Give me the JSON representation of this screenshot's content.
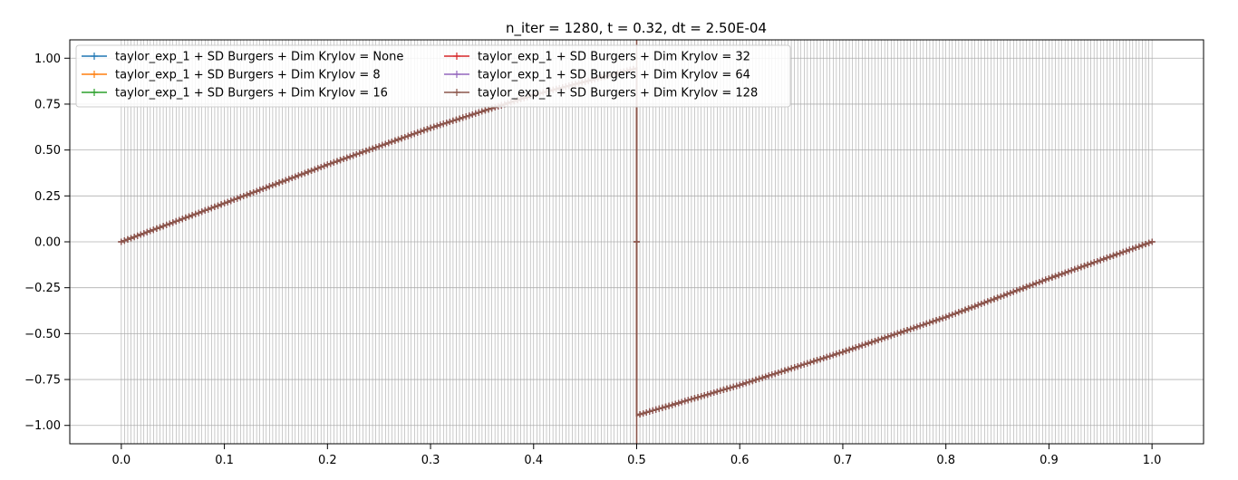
{
  "chart_data": {
    "type": "line",
    "title": "n_iter = 1280, t = 0.32, dt = 2.50E-04",
    "xlabel": "",
    "ylabel": "",
    "xlim": [
      -0.05,
      1.05
    ],
    "ylim": [
      -1.1,
      1.1
    ],
    "x_ticks": [
      0.0,
      0.1,
      0.2,
      0.3,
      0.4,
      0.5,
      0.6,
      0.7,
      0.8,
      0.9,
      1.0
    ],
    "x_tick_labels": [
      "0.0",
      "0.1",
      "0.2",
      "0.3",
      "0.4",
      "0.5",
      "0.6",
      "0.7",
      "0.8",
      "0.9",
      "1.0"
    ],
    "y_ticks": [
      1.0,
      0.75,
      0.5,
      0.25,
      0.0,
      -0.25,
      -0.5,
      -0.75,
      -1.0
    ],
    "y_tick_labels": [
      "1.00",
      "0.75",
      "0.50",
      "0.25",
      "0.00",
      "−0.25",
      "−0.50",
      "−0.75",
      "−1.00"
    ],
    "grid": true,
    "legend_position": "top-left",
    "legend_columns": 2,
    "profile": {
      "x": [
        0.0,
        0.1,
        0.2,
        0.3,
        0.4,
        0.5,
        0.5,
        0.5,
        0.6,
        0.7,
        0.8,
        0.9,
        1.0
      ],
      "y": [
        0.0,
        0.21,
        0.42,
        0.62,
        0.8,
        0.945,
        0.0,
        -0.945,
        -0.78,
        -0.6,
        -0.41,
        -0.2,
        0.0
      ]
    },
    "series": [
      {
        "name": "taylor_exp_1 + SD Burgers + Dim Krylov = None",
        "color": "#1f77b4"
      },
      {
        "name": "taylor_exp_1 + SD Burgers + Dim Krylov = 8",
        "color": "#ff7f0e"
      },
      {
        "name": "taylor_exp_1 + SD Burgers + Dim Krylov = 16",
        "color": "#2ca02c"
      },
      {
        "name": "taylor_exp_1 + SD Burgers + Dim Krylov = 32",
        "color": "#d62728"
      },
      {
        "name": "taylor_exp_1 + SD Burgers + Dim Krylov = 64",
        "color": "#9467bd"
      },
      {
        "name": "taylor_exp_1 + SD Burgers + Dim Krylov = 128",
        "color": "#8c564b"
      }
    ]
  }
}
